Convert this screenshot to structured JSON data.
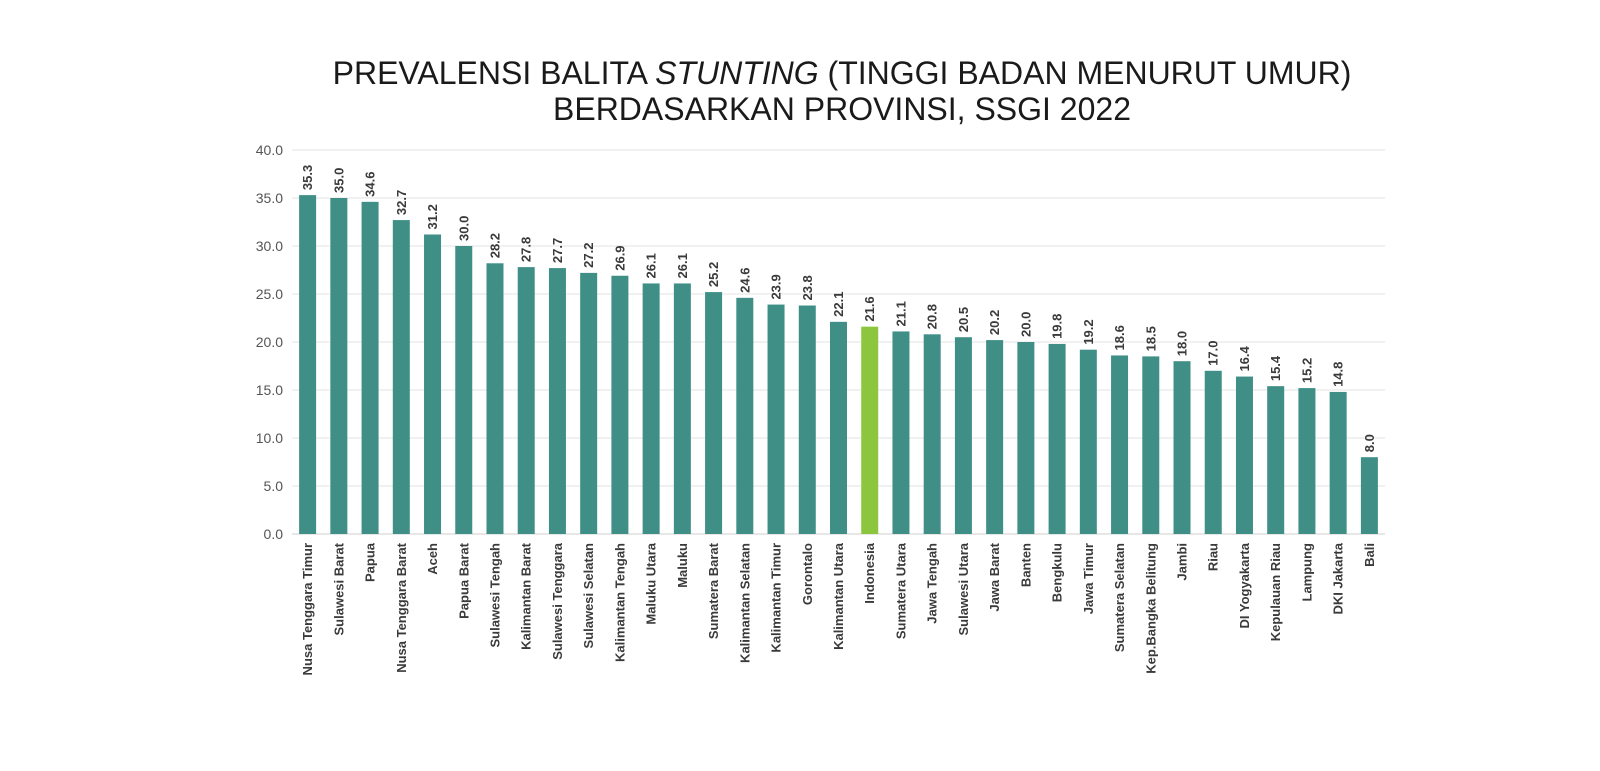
{
  "chart_data": {
    "type": "bar",
    "title_line1_a": "PREVALENSI BALITA ",
    "title_line1_em": "STUNTING",
    "title_line1_b": " (TINGGI BADAN MENURUT UMUR)",
    "title_line2": "BERDASARKAN PROVINSI, SSGI 2022",
    "xlabel": "",
    "ylabel": "",
    "ylim": [
      0,
      40
    ],
    "yticks": [
      0,
      5,
      10,
      15,
      20,
      25,
      30,
      35,
      40
    ],
    "grid": true,
    "legend": "none",
    "bar_color": "#3f8f87",
    "highlight_color": "#8cc63f",
    "highlight_category": "Indonesia",
    "categories": [
      "Nusa Tenggara Timur",
      "Sulawesi Barat",
      "Papua",
      "Nusa Tenggara Barat",
      "Aceh",
      "Papua Barat",
      "Sulawesi Tengah",
      "Kalimantan Barat",
      "Sulawesi Tenggara",
      "Sulawesi Selatan",
      "Kalimantan Tengah",
      "Maluku Utara",
      "Maluku",
      "Sumatera Barat",
      "Kalimantan Selatan",
      "Kalimantan Timur",
      "Gorontalo",
      "Kalimantan Utara",
      "Indonesia",
      "Sumatera Utara",
      "Jawa Tengah",
      "Sulawesi Utara",
      "Jawa Barat",
      "Banten",
      "Bengkulu",
      "Jawa Timur",
      "Sumatera Selatan",
      "Kep.Bangka Belitung",
      "Jambi",
      "Riau",
      "DI Yogyakarta",
      "Kepulauan Riau",
      "Lampung",
      "DKI Jakarta",
      "Bali"
    ],
    "values": [
      35.3,
      35.0,
      34.6,
      32.7,
      31.2,
      30.0,
      28.2,
      27.8,
      27.7,
      27.2,
      26.9,
      26.1,
      26.1,
      25.2,
      24.6,
      23.9,
      23.8,
      22.1,
      21.6,
      21.1,
      20.8,
      20.5,
      20.2,
      20.0,
      19.8,
      19.2,
      18.6,
      18.5,
      18.0,
      17.0,
      16.4,
      15.4,
      15.2,
      14.8,
      8.0
    ]
  }
}
